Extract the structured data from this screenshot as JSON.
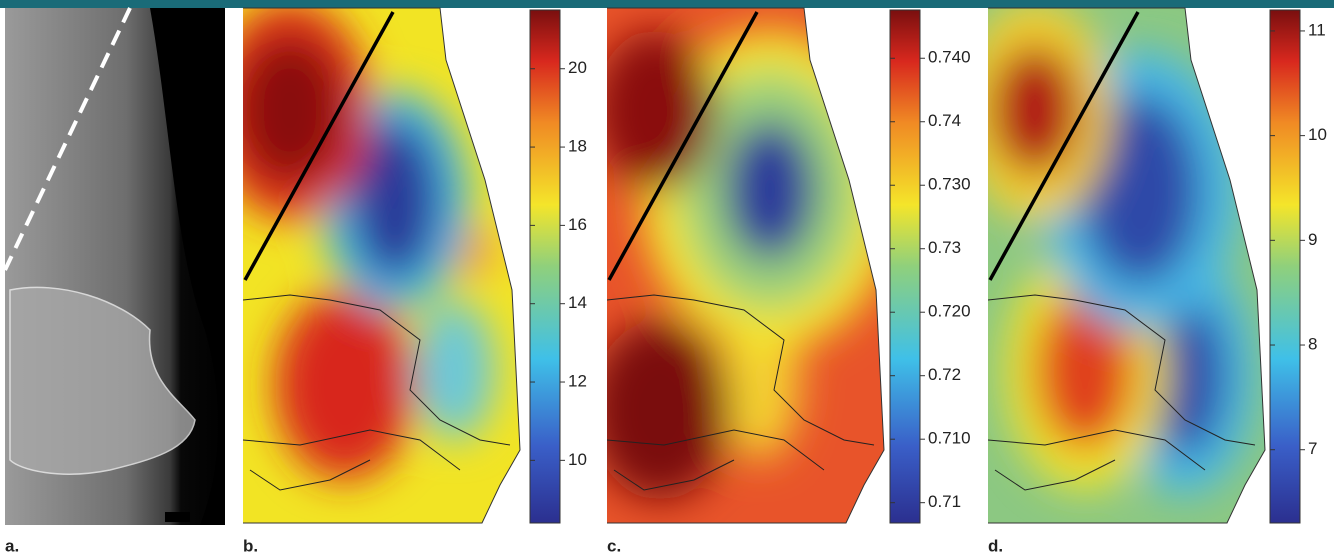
{
  "panels": [
    {
      "label": "a."
    },
    {
      "label": "b.",
      "colorbar": {
        "lim": [
          8.4,
          21.5
        ],
        "ticks": [
          10,
          12,
          14,
          16,
          18,
          20
        ]
      }
    },
    {
      "label": "c.",
      "colorbar": {
        "lim": [
          0.7034,
          0.7438
        ],
        "ticks": [
          {
            "value": 0.705,
            "label": "0.71"
          },
          {
            "value": 0.71,
            "label": "0.710"
          },
          {
            "value": 0.715,
            "label": "0.72"
          },
          {
            "value": 0.72,
            "label": "0.720"
          },
          {
            "value": 0.725,
            "label": "0.73"
          },
          {
            "value": 0.73,
            "label": "0.730"
          },
          {
            "value": 0.735,
            "label": "0.74"
          },
          {
            "value": 0.74,
            "label": "0.740"
          }
        ]
      }
    },
    {
      "label": "d.",
      "colorbar": {
        "lim": [
          6.3,
          11.2
        ],
        "ticks": [
          7,
          8,
          9,
          10,
          11
        ]
      }
    }
  ]
}
